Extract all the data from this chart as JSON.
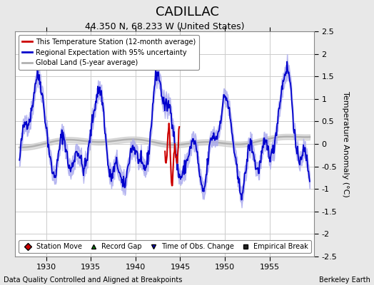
{
  "title": "CADILLAC",
  "subtitle": "44.350 N, 68.233 W (United States)",
  "ylabel": "Temperature Anomaly (°C)",
  "xlabel_left": "Data Quality Controlled and Aligned at Breakpoints",
  "xlabel_right": "Berkeley Earth",
  "xlim": [
    1926.5,
    1960.0
  ],
  "ylim": [
    -2.5,
    2.5
  ],
  "xticks": [
    1930,
    1935,
    1940,
    1945,
    1950,
    1955
  ],
  "yticks": [
    -2.5,
    -2.0,
    -1.5,
    -1.0,
    -0.5,
    0.0,
    0.5,
    1.0,
    1.5,
    2.0,
    2.5
  ],
  "bg_color": "#e8e8e8",
  "plot_bg_color": "#ffffff",
  "grid_color": "#cccccc",
  "regional_line_color": "#0000cc",
  "regional_fill_color": "#aaaaee",
  "station_line_color": "#cc0000",
  "global_land_color": "#b0b0b0",
  "legend_box_color": "#ffffff",
  "seed": 42,
  "title_fontsize": 13,
  "subtitle_fontsize": 9,
  "tick_fontsize": 8,
  "ylabel_fontsize": 8
}
